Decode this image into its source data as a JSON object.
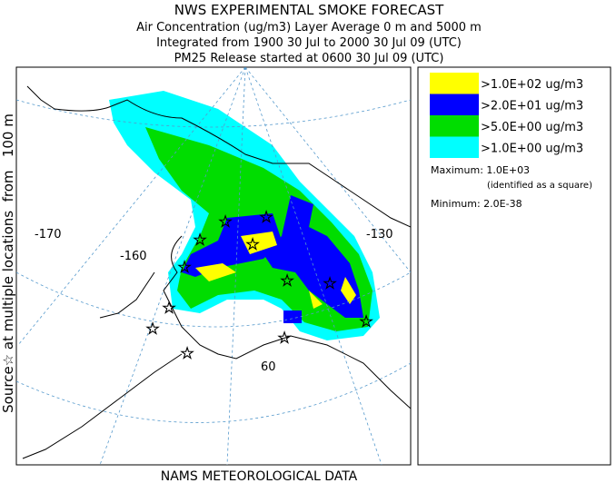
{
  "header": {
    "title": "NWS EXPERIMENTAL SMOKE FORECAST",
    "lines": [
      "Air Concentration (ug/m3) Layer Average    0 m and  5000 m",
      "Integrated from 1900 30 Jul to 2000 30 Jul 09 (UTC)",
      "PM25 Release started at 0600 30 Jul 09 (UTC)"
    ]
  },
  "side_label": "Source☆ at multiple locations  from   100 m",
  "footer": "NAMS METEOROLOGICAL DATA",
  "map": {
    "labels": [
      "-170",
      "-160",
      "-130",
      "60"
    ]
  },
  "legend": {
    "items": [
      {
        "label": ">1.0E+02 ug/m3",
        "color": "#ffff00"
      },
      {
        "label": ">2.0E+01 ug/m3",
        "color": "#0000ff"
      },
      {
        "label": ">5.0E+00 ug/m3",
        "color": "#00dd00"
      },
      {
        "label": ">1.0E+00 ug/m3",
        "color": "#00ffff"
      }
    ],
    "maximum": "Maximum: 1.0E+03",
    "maximum_note": "(identified as a square)",
    "minimum": "Minimum: 2.0E-38"
  }
}
